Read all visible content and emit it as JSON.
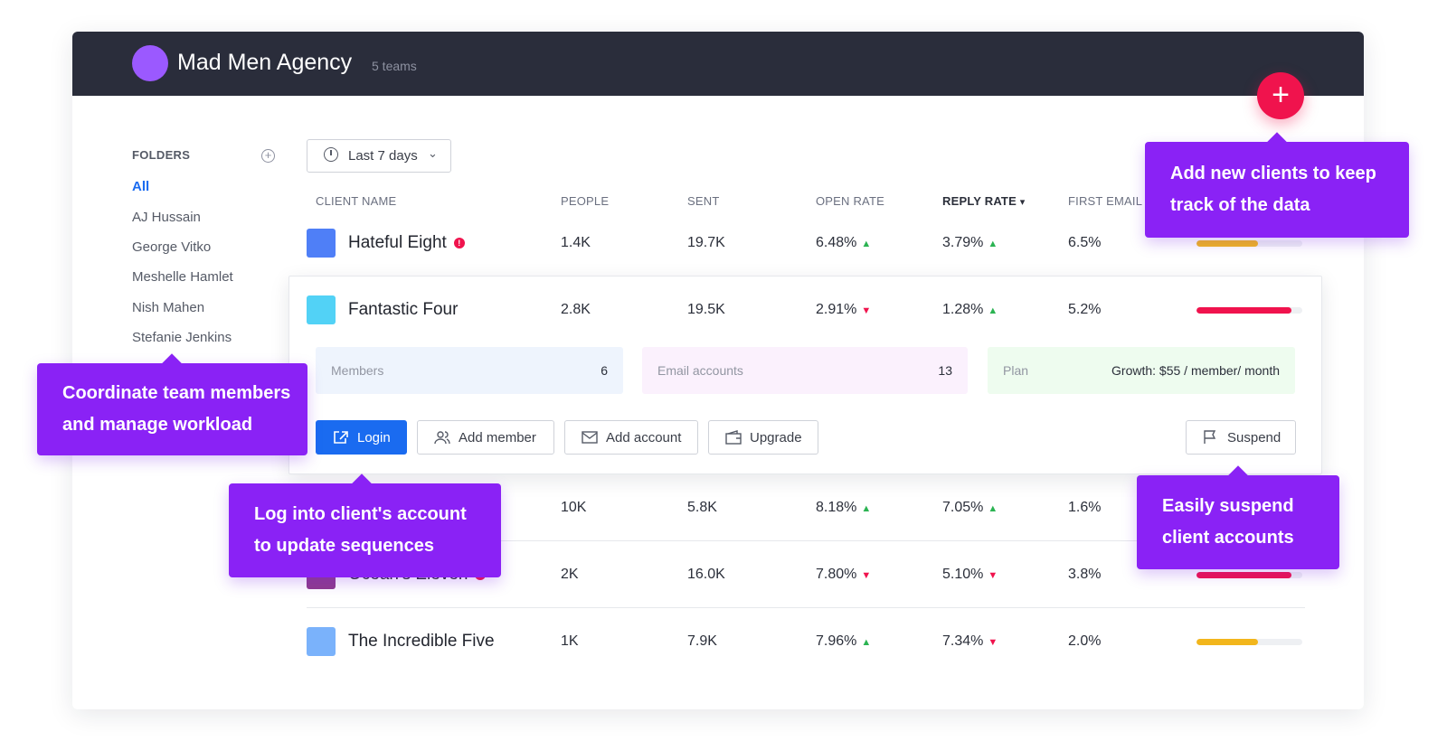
{
  "header": {
    "agency_name": "Mad Men Agency",
    "teams_count": "5 teams"
  },
  "folders": {
    "title": "FOLDERS",
    "items": [
      "All",
      "AJ Hussain",
      "George Vitko",
      "Meshelle Hamlet",
      "Nish Mahen",
      "Stefanie Jenkins"
    ]
  },
  "date_range": {
    "label": "Last 7 days"
  },
  "columns": {
    "client_name": "CLIENT NAME",
    "people": "PEOPLE",
    "sent": "SENT",
    "open_rate": "OPEN RATE",
    "reply_rate": "REPLY RATE",
    "first_email": "FIRST EMAIL"
  },
  "clients": [
    {
      "name": "Hateful Eight",
      "alert": true,
      "people": "1.4K",
      "sent": "19.7K",
      "open_rate": "6.48%",
      "open_trend": "up",
      "reply_rate": "3.79%",
      "reply_trend": "up",
      "first_email": "6.5%",
      "swatch": "#4f7ff7",
      "bar_level": 0.58,
      "bar_color": "#f2b61c"
    },
    {
      "name": "Fantastic Four",
      "alert": false,
      "people": "2.8K",
      "sent": "19.5K",
      "open_rate": "2.91%",
      "open_trend": "down",
      "reply_rate": "1.28%",
      "reply_trend": "up",
      "first_email": "5.2%",
      "swatch": "#52d2f6",
      "bar_level": 0.9,
      "bar_color": "#f0134d"
    },
    {
      "name": "",
      "alert": false,
      "people": "10K",
      "sent": "5.8K",
      "open_rate": "8.18%",
      "open_trend": "up",
      "reply_rate": "7.05%",
      "reply_trend": "up",
      "first_email": "1.6%",
      "swatch": "#2fc9a0",
      "bar_level": 0,
      "bar_color": "#f2b61c"
    },
    {
      "name": "Ocean's Eleven",
      "alert": true,
      "people": "2K",
      "sent": "16.0K",
      "open_rate": "7.80%",
      "open_trend": "down",
      "reply_rate": "5.10%",
      "reply_trend": "down",
      "first_email": "3.8%",
      "swatch": "#8e3b8e",
      "bar_level": 0.9,
      "bar_color": "#f0134d"
    },
    {
      "name": "The Incredible Five",
      "alert": false,
      "people": "1K",
      "sent": "7.9K",
      "open_rate": "7.96%",
      "open_trend": "up",
      "reply_rate": "7.34%",
      "reply_trend": "down",
      "first_email": "2.0%",
      "swatch": "#7ab2fb",
      "bar_level": 0.58,
      "bar_color": "#f2b61c"
    }
  ],
  "expanded": {
    "members_label": "Members",
    "members_value": "6",
    "email_accounts_label": "Email accounts",
    "email_accounts_value": "13",
    "plan_label": "Plan",
    "plan_value": "Growth: $55 / member/ month",
    "buttons": {
      "login": "Login",
      "add_member": "Add member",
      "add_account": "Add account",
      "upgrade": "Upgrade",
      "suspend": "Suspend"
    }
  },
  "callouts": {
    "add_clients": [
      "Add new clients to keep",
      "track of the data"
    ],
    "coordinate": [
      "Coordinate team members",
      "and manage workload"
    ],
    "login": [
      "Log into client's account",
      "to update sequences"
    ],
    "suspend": [
      "Easily suspend",
      "client accounts"
    ]
  },
  "colors": {
    "accent": "#8a22f5",
    "primary": "#1a6bf0",
    "danger": "#f0134d",
    "up": "#2bb352",
    "header_bg": "#2a2d3b"
  },
  "icons": {
    "add_folder": "plus-circle-icon",
    "date_range": "history-icon",
    "alert": "alert-icon",
    "login": "external-link-icon",
    "add_member": "users-icon",
    "add_account": "mail-icon",
    "upgrade": "wallet-icon",
    "suspend": "flag-icon",
    "add_client": "plus-icon"
  }
}
